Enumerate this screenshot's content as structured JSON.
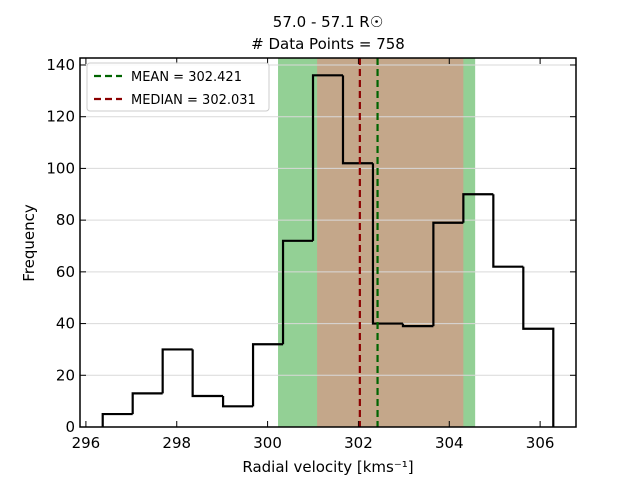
{
  "chart_data": {
    "type": "histogram",
    "title": "57.0 - 57.1 R☉",
    "subtitle": "# Data Points = 758",
    "xlabel": "Radial velocity [kms⁻¹]",
    "ylabel": "Frequency",
    "bins": [
      296.37,
      297.03,
      297.69,
      298.35,
      299.02,
      299.68,
      300.34,
      301.0,
      301.66,
      302.32,
      302.98,
      303.65,
      304.31,
      304.97,
      305.63,
      306.29
    ],
    "values": [
      5,
      13,
      30,
      12,
      8,
      32,
      72,
      136,
      102,
      40,
      39,
      79,
      90,
      62,
      38
    ],
    "color": "#000000",
    "spans": [
      {
        "range": [
          300.23,
          304.57
        ],
        "color": "#93d095"
      },
      {
        "range": [
          301.09,
          304.31
        ],
        "color": "#c4a78a"
      }
    ],
    "series": [
      {
        "name": "MEAN = 302.421",
        "color": "#006400",
        "value": 302.421
      },
      {
        "name": "MEDIAN = 302.031",
        "color": "#8b0000",
        "value": 302.031
      }
    ],
    "xlim": [
      295.87,
      306.79
    ],
    "ylim": [
      0,
      142.7
    ],
    "xticks": [
      296,
      298,
      300,
      302,
      304,
      306
    ],
    "yticks": [
      0,
      20,
      40,
      60,
      80,
      100,
      120,
      140
    ],
    "grid": true
  }
}
